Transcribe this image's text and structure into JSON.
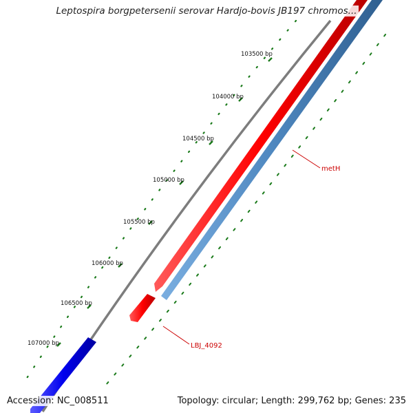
{
  "title": "Leptospira borgpetersenii serovar Hardjo-bovis JB197 chromos...",
  "footer": {
    "accession": "Accession: NC_008511",
    "summary": "Topology: circular; Length: 299,762 bp; Genes: 235"
  },
  "ruler": {
    "labels": [
      "103500 bp",
      "104000 bp",
      "104500 bp",
      "105000 bp",
      "105500 bp",
      "106000 bp",
      "106500 bp",
      "107000 bp"
    ]
  },
  "genes": [
    {
      "name": "metH",
      "strand": "forward",
      "color": "#ff0000"
    },
    {
      "name": "LBJ_4092",
      "strand": "forward",
      "color": "#ff0000"
    },
    {
      "name": "",
      "strand": "reverse",
      "color": "#0000ee"
    }
  ],
  "tracks": {
    "backbone_color": "#808080",
    "forward_color": "#ff0000",
    "reverse_color": "#0000ee",
    "cds_color": "#4f88c0",
    "tick_color": "#1a7a1a"
  }
}
